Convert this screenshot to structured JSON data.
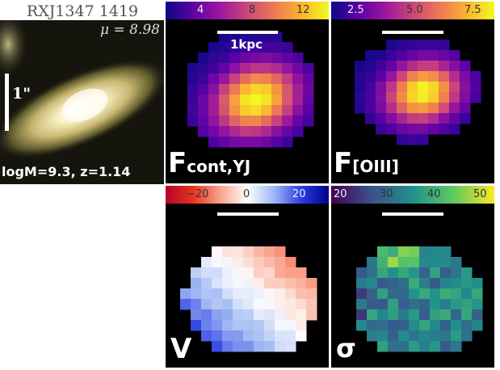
{
  "title": "RXJ1347 1419",
  "thumb": {
    "mu_label": "μ = 8.98",
    "scale_label": "1\"",
    "info": "logM=9.3, z=1.14"
  },
  "scalebar_label": "1kpc",
  "panels": {
    "fcont": {
      "label_main": "F",
      "label_sub": "cont,YJ",
      "colormap": "plasma",
      "ticks": [
        "4",
        "8",
        "12"
      ]
    },
    "foiii": {
      "label_main": "F",
      "label_sub": "[OIII]",
      "colormap": "plasma",
      "ticks": [
        "2.5",
        "5.0",
        "7.5"
      ]
    },
    "velocity": {
      "label": "V",
      "colormap": "bwr",
      "ticks": [
        "−20",
        "0",
        "20"
      ]
    },
    "sigma": {
      "label": "σ",
      "colormap": "viridis",
      "ticks": [
        "20",
        "30",
        "40",
        "50"
      ]
    }
  },
  "colors": {
    "background": "#000000",
    "scalebar": "#ffffff",
    "label": "#ffffff"
  }
}
